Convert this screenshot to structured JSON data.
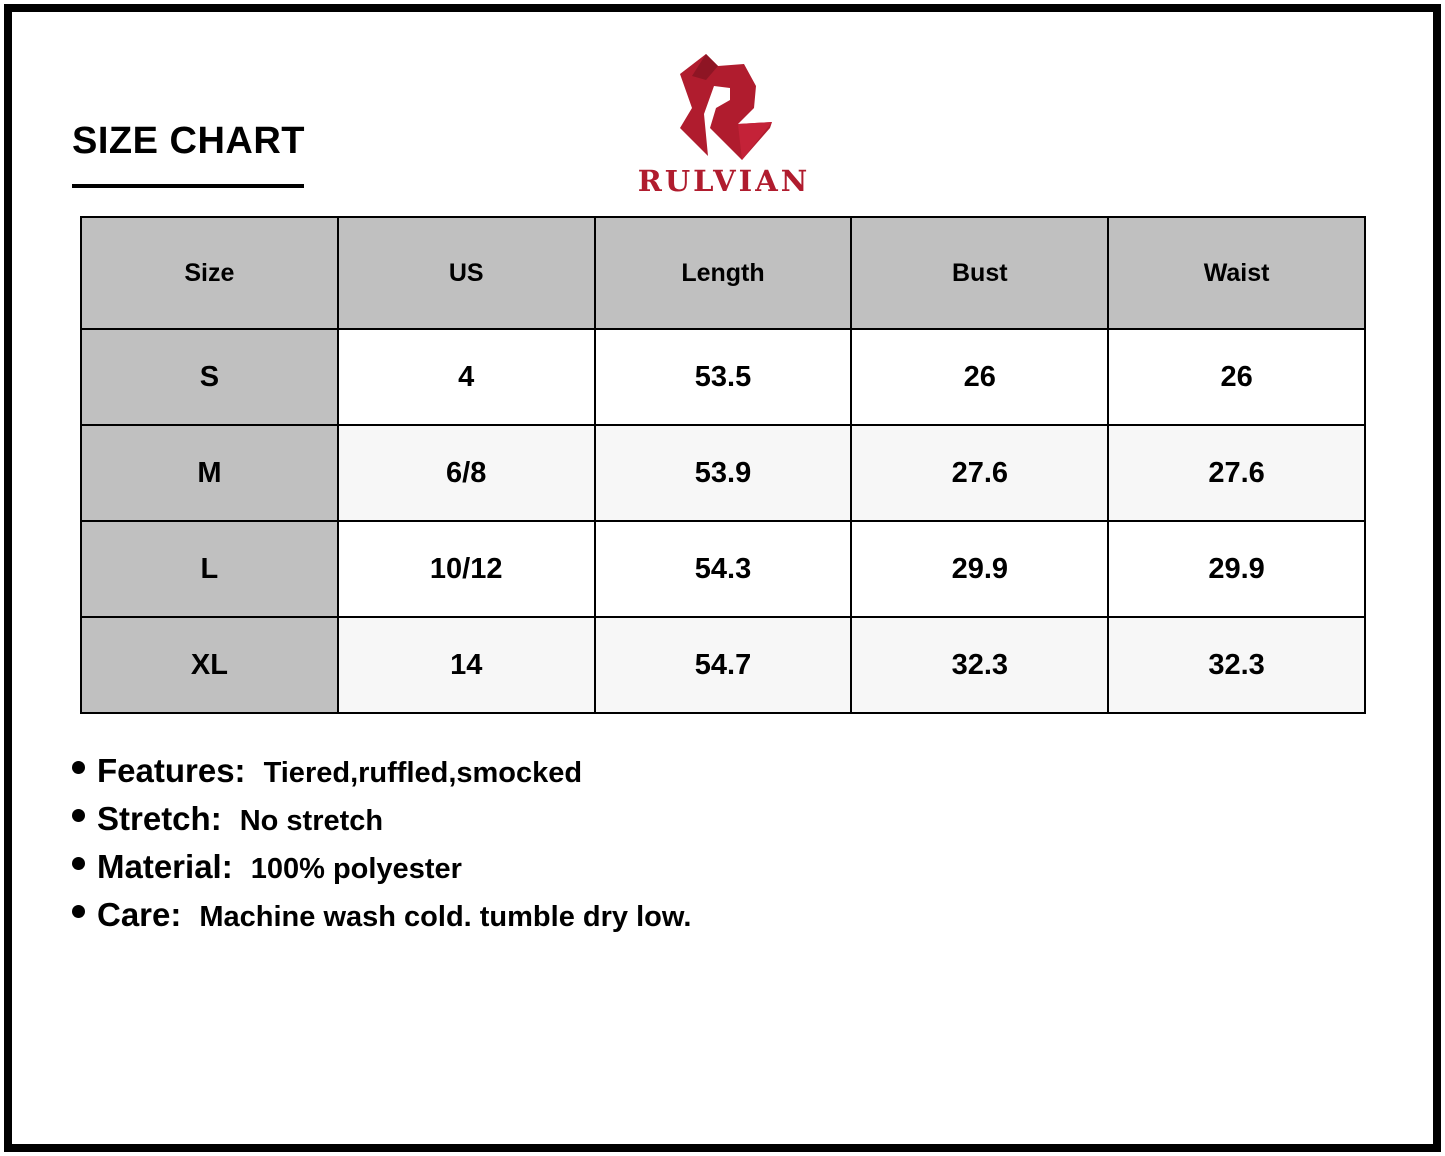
{
  "title": "SIZE CHART",
  "brand": {
    "name": "RULVIAN",
    "color": "#b01c2e"
  },
  "table": {
    "headers": [
      "Size",
      "US",
      "Length",
      "Bust",
      "Waist"
    ],
    "rows": [
      [
        "S",
        "4",
        "53.5",
        "26",
        "26"
      ],
      [
        "M",
        "6/8",
        "53.9",
        "27.6",
        "27.6"
      ],
      [
        "L",
        "10/12",
        "54.3",
        "29.9",
        "29.9"
      ],
      [
        "XL",
        "14",
        "54.7",
        "32.3",
        "32.3"
      ]
    ]
  },
  "features": [
    {
      "label": "Features:",
      "value": "Tiered,ruffled,smocked"
    },
    {
      "label": "Stretch:",
      "value": "No stretch"
    },
    {
      "label": "Material:",
      "value": "100% polyester"
    },
    {
      "label": "Care:",
      "value": "Machine wash cold. tumble dry low."
    }
  ]
}
